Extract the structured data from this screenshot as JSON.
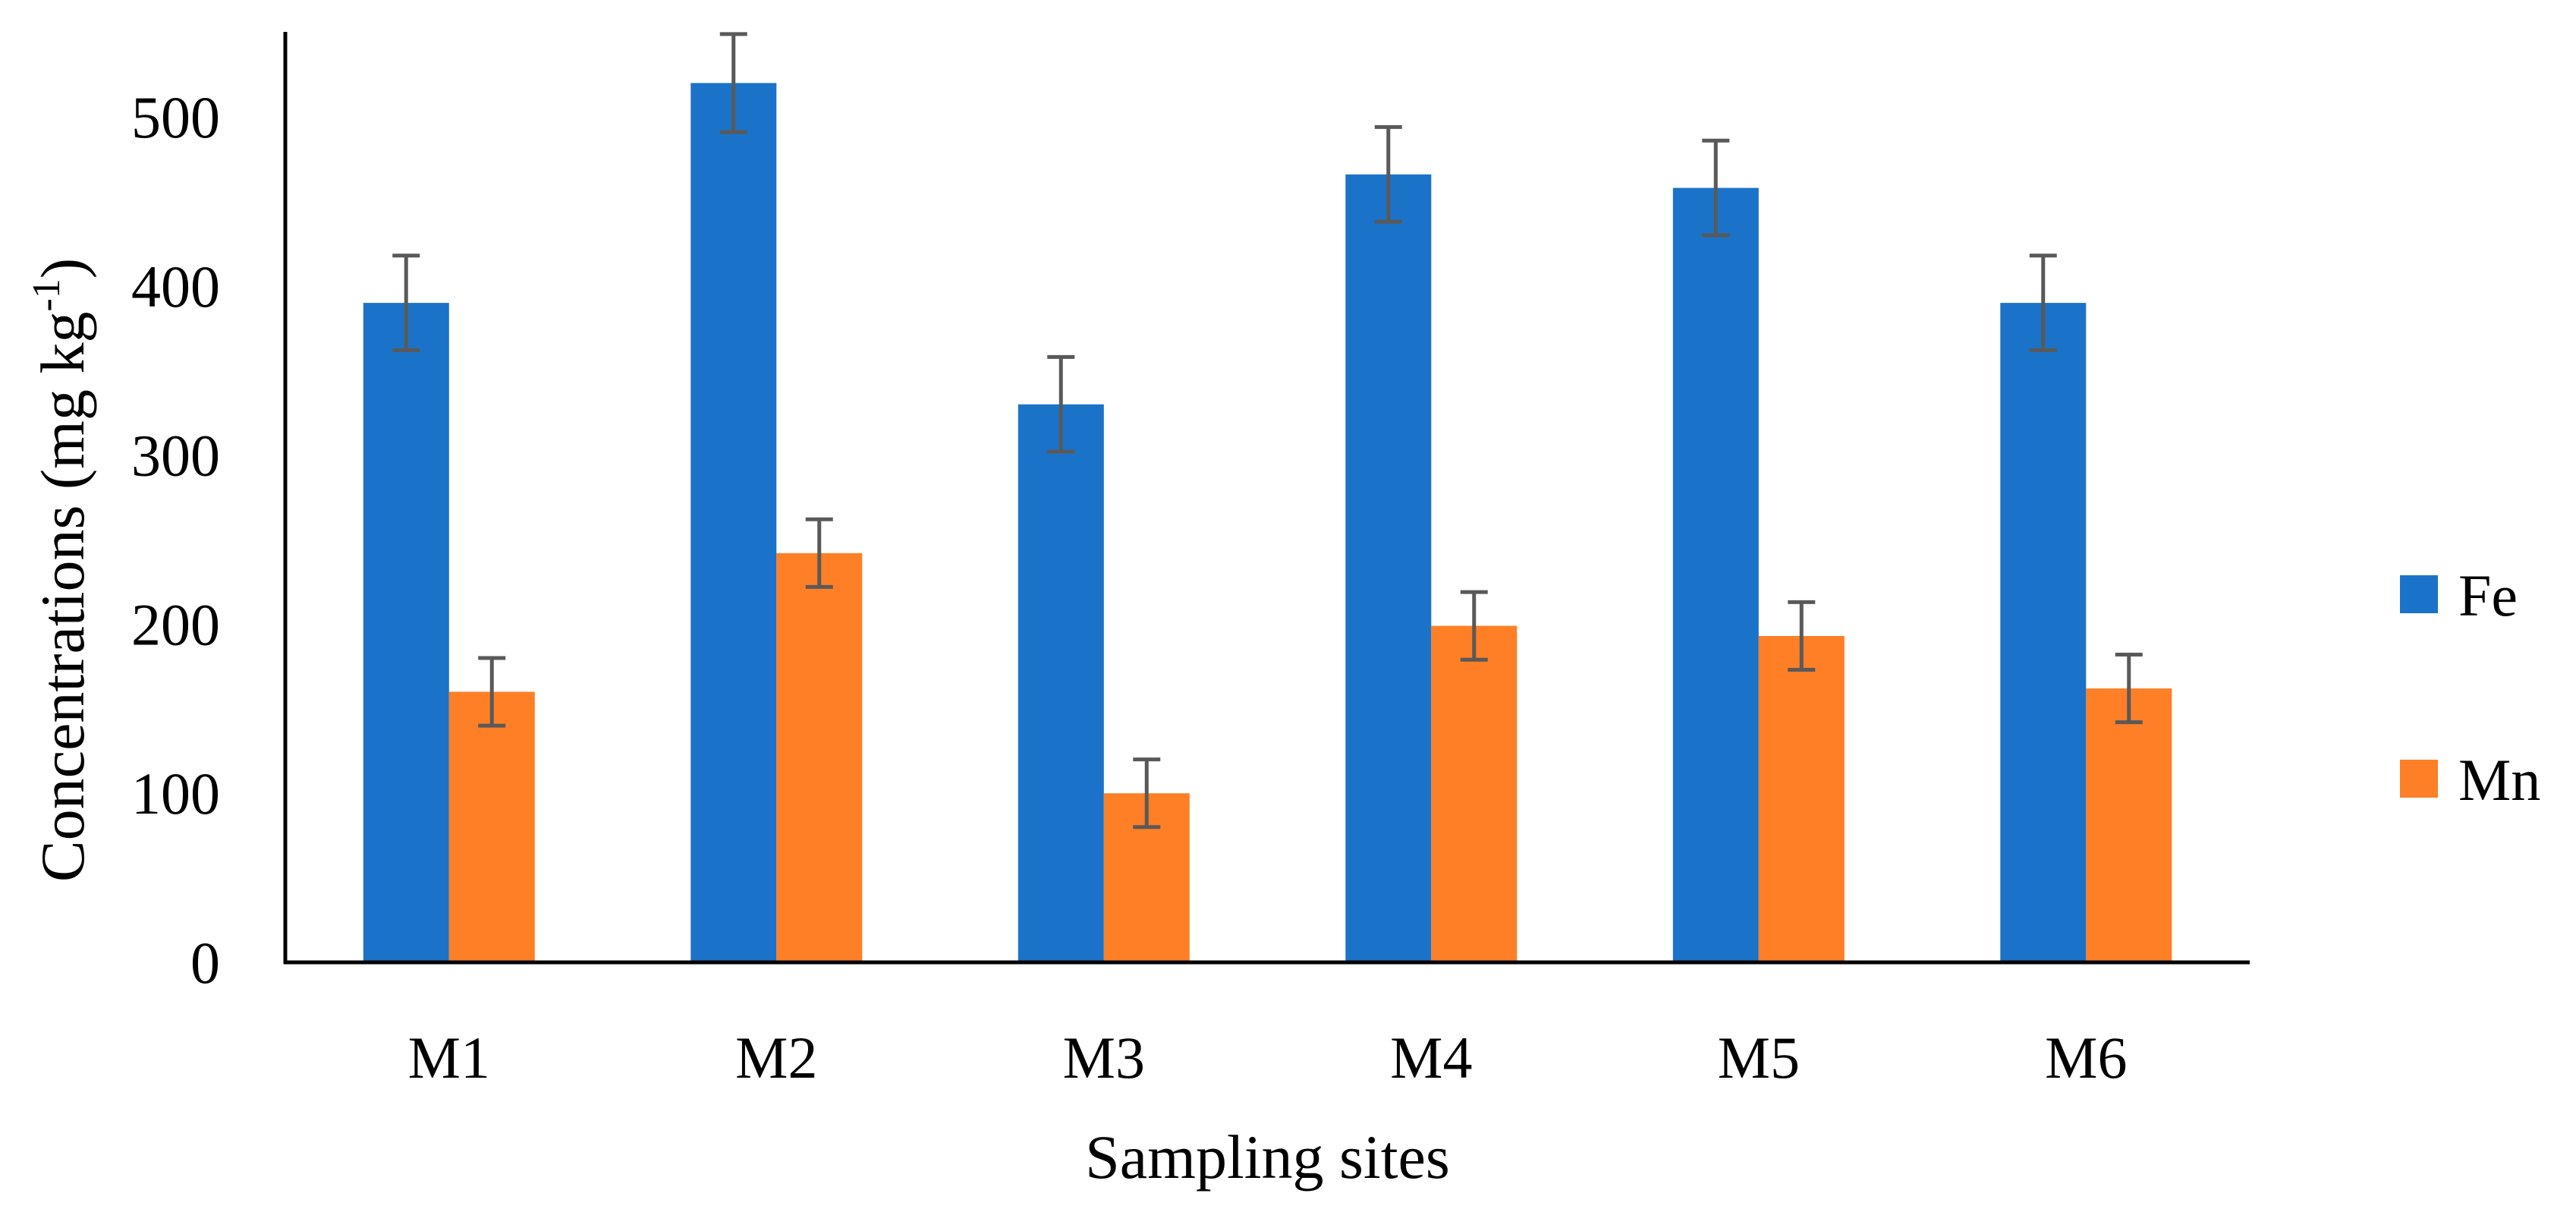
{
  "chart_data": {
    "type": "bar",
    "title": "",
    "xlabel": "Sampling sites",
    "ylabel": "Concentrations (mg kg",
    "ylabel_superscript": "-1",
    "ylabel_suffix": ")",
    "categories": [
      "M1",
      "M2",
      "M3",
      "M4",
      "M5",
      "M6"
    ],
    "ylim": [
      0,
      550
    ],
    "yticks": [
      0,
      100,
      200,
      300,
      400,
      500
    ],
    "grid": false,
    "legend_position": "right",
    "series": [
      {
        "name": "Fe",
        "color": "#1A73C8",
        "values": [
          390,
          520,
          330,
          466,
          458,
          390
        ],
        "errors": [
          28,
          29,
          28,
          28,
          28,
          28
        ]
      },
      {
        "name": "Mn",
        "color": "#FE7F26",
        "values": [
          160,
          242,
          100,
          199,
          193,
          162
        ],
        "errors": [
          20,
          20,
          20,
          20,
          20,
          20
        ]
      }
    ],
    "error_bar_color": "#595959"
  }
}
